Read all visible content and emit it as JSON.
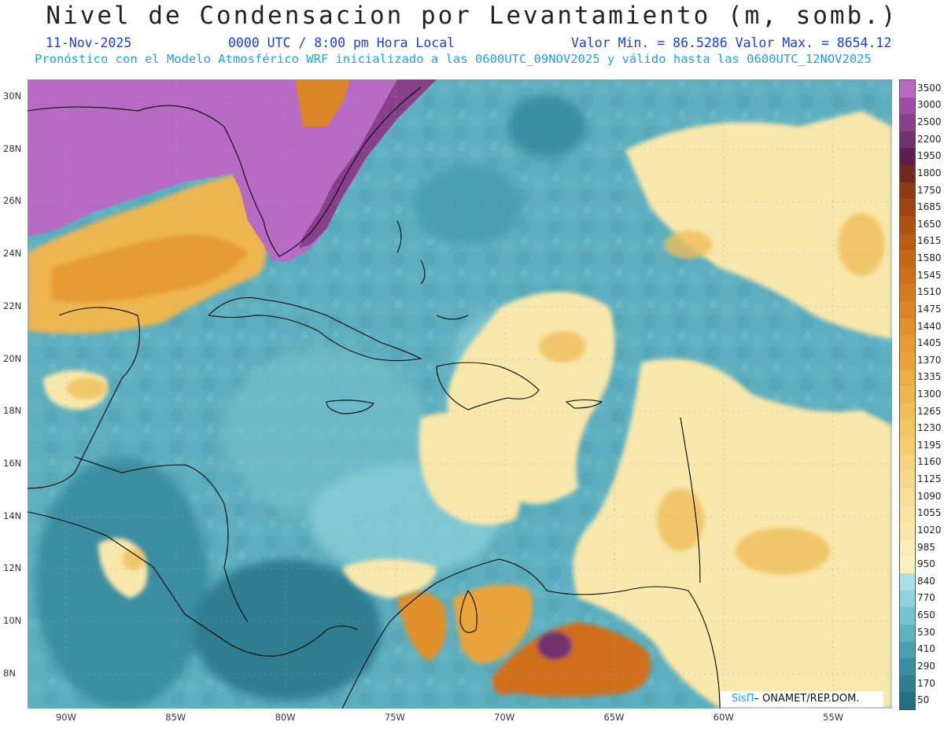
{
  "title": "Nivel de Condensacion por Levantamiento (m, somb.)",
  "date": "11-Nov-2025",
  "time": "0000 UTC / 8:00 pm Hora Local",
  "stats": "Valor Min. = 86.5286  Valor Max. = 8654.12",
  "forecast": "Pronóstico con el Modelo Atmosférico WRF inicializado a las 0600UTC_09NOV2025 y válido hasta las  0600UTC_12NOV2025",
  "lat_labels": [
    "30N",
    "28N",
    "26N",
    "24N",
    "22N",
    "20N",
    "18N",
    "16N",
    "14N",
    "12N",
    "10N",
    "8N"
  ],
  "lon_labels": [
    "90W",
    "85W",
    "80W",
    "75W",
    "70W",
    "65W",
    "60W",
    "55W"
  ],
  "colorbar": {
    "labels": [
      "3500",
      "3000",
      "2500",
      "2200",
      "1950",
      "1800",
      "1750",
      "1685",
      "1650",
      "1615",
      "1580",
      "1545",
      "1510",
      "1475",
      "1440",
      "1405",
      "1370",
      "1335",
      "1300",
      "1265",
      "1230",
      "1195",
      "1160",
      "1125",
      "1090",
      "1055",
      "1020",
      "985",
      "950",
      "840",
      "770",
      "650",
      "530",
      "410",
      "290",
      "170",
      "50"
    ],
    "colors": [
      "#b86bc4",
      "#9c4fa6",
      "#874089",
      "#71306e",
      "#5b2050",
      "#6e2a1a",
      "#8a3a14",
      "#9e4412",
      "#ae5014",
      "#ba5a16",
      "#c66618",
      "#cf6e1c",
      "#d67a20",
      "#dc8526",
      "#e1902c",
      "#e59a33",
      "#e8a43b",
      "#ebad45",
      "#eeb64f",
      "#f0be5a",
      "#f2c666",
      "#f4cd72",
      "#f5d37e",
      "#f6d98a",
      "#f7de95",
      "#f8e3a0",
      "#f9e8ab",
      "#faecb6",
      "#fbf0c0",
      "#a9e0e6",
      "#8fd2db",
      "#76c2cd",
      "#60b1bf",
      "#4c9fb0",
      "#3a8ea1",
      "#2e7d91",
      "#236e82"
    ]
  },
  "credit": {
    "brand": "SisΠ",
    "text": "– ONAMET/REP.DOM."
  }
}
